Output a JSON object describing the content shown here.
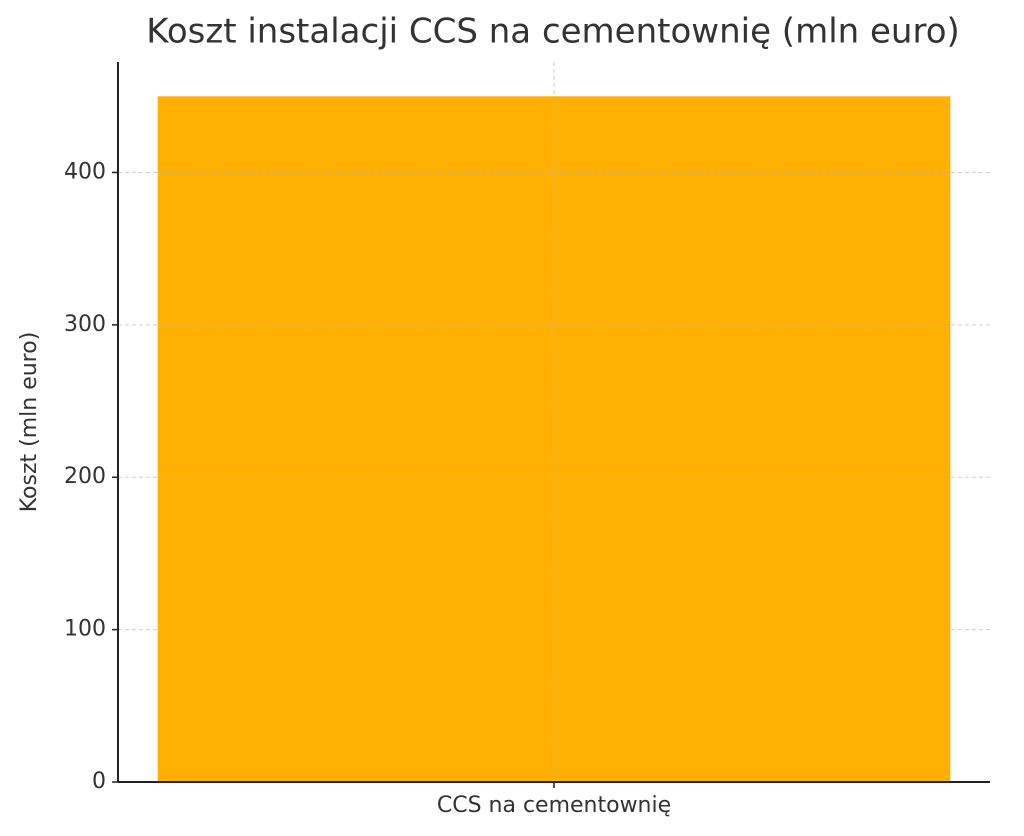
{
  "chart_data": {
    "type": "bar",
    "title": "Koszt instalacji CCS na cementownię (mln euro)",
    "ylabel": "Koszt (mln euro)",
    "categories": [
      "CCS na cementownię"
    ],
    "values": [
      450
    ],
    "color": "#ffb000",
    "ylim": [
      0,
      472.5
    ],
    "yticks": [
      0,
      100,
      200,
      300,
      400
    ],
    "grid": true
  }
}
